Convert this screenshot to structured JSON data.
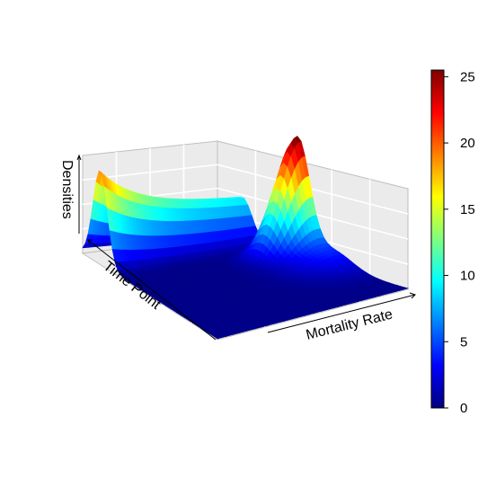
{
  "chart_data": {
    "type": "surface",
    "x_label": "Mortality Rate",
    "y_label": "Time Point",
    "z_label": "Densities",
    "colorbar": {
      "range": [
        0,
        25.5
      ],
      "ticks": [
        0,
        5,
        10,
        15,
        20,
        25
      ],
      "colormap": "jet",
      "colors": [
        "#00007F",
        "#0000FF",
        "#007FFF",
        "#00FFFF",
        "#7FFF7F",
        "#FFFF00",
        "#FF7F00",
        "#FF0000",
        "#7F0000"
      ]
    },
    "surface": {
      "description_values": {
        "main_ridge_peak_density": 20,
        "secondary_peak_density": 25,
        "baseline_density": 0
      },
      "ridge_profile": [
        {
          "time_index": 0.0,
          "density": 20
        },
        {
          "time_index": 0.15,
          "density": 18
        },
        {
          "time_index": 0.35,
          "density": 15
        },
        {
          "time_index": 0.55,
          "density": 13
        },
        {
          "time_index": 0.75,
          "density": 12
        },
        {
          "time_index": 1.0,
          "density": 11
        }
      ],
      "secondary_peak": {
        "time_index": 1.0,
        "mortality_index": 0.55,
        "density": 25
      }
    },
    "grid": true,
    "panel_background": "#EBEBEB"
  }
}
